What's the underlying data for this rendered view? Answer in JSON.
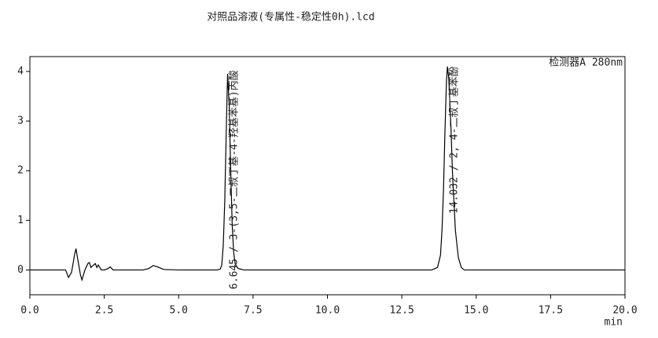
{
  "chart_data": {
    "type": "line",
    "title": "对照品溶液(专属性-稳定性0h).lcd",
    "detector_label": "检测器A 280nm",
    "x_label": "min",
    "annotations": [
      "6.645 / 3-(3,5-二叔丁基-4-羟基苯基)丙酸",
      "14.032 / 2, 4-二叔丁基苯酚"
    ],
    "xlim": [
      0,
      20
    ],
    "ylim": [
      -0.5,
      4.3
    ],
    "xticks": [
      {
        "value": 0,
        "label": "0.0"
      },
      2.5,
      {
        "value": 5,
        "label": "5.0"
      },
      7.5,
      {
        "value": 10,
        "label": "10.0"
      },
      12.5,
      {
        "value": 15,
        "label": "15.0"
      },
      17.5,
      {
        "value": 20,
        "label": "20.0"
      }
    ],
    "yticks": [
      0,
      1,
      2,
      3,
      4
    ],
    "series": [
      {
        "color": "#000000",
        "x": [
          0,
          1.2,
          1.3,
          1.4,
          1.5,
          1.55,
          1.6,
          1.7,
          1.75,
          1.85,
          1.95,
          2.0,
          2.05,
          2.1,
          2.2,
          2.25,
          2.3,
          2.4,
          2.5,
          2.6,
          2.7,
          2.8,
          3.0,
          3.8,
          4.0,
          4.15,
          4.3,
          4.5,
          5.0,
          6.3,
          6.4,
          6.45,
          6.5,
          6.55,
          6.6,
          6.645,
          6.7,
          6.75,
          6.8,
          6.85,
          6.9,
          7.0,
          7.2,
          13.5,
          13.7,
          13.8,
          13.85,
          13.9,
          13.95,
          14.0,
          14.032,
          14.08,
          14.15,
          14.2,
          14.3,
          14.4,
          14.5,
          14.6,
          20
        ],
        "values": [
          0,
          0,
          -0.15,
          -0.05,
          0.3,
          0.43,
          0.25,
          -0.1,
          -0.2,
          0,
          0.13,
          0.15,
          0.05,
          0.08,
          0.13,
          0.05,
          0.1,
          0,
          0,
          0.02,
          0.06,
          0,
          0,
          0,
          0.03,
          0.09,
          0.06,
          0.01,
          0,
          0,
          0.02,
          0.1,
          0.5,
          1.4,
          2.8,
          3.95,
          3.3,
          2.0,
          0.9,
          0.35,
          0.12,
          0.03,
          0,
          0,
          0.05,
          0.3,
          0.8,
          1.6,
          2.8,
          3.8,
          4.1,
          3.85,
          2.9,
          2.0,
          0.8,
          0.25,
          0.05,
          0,
          0
        ]
      }
    ]
  }
}
